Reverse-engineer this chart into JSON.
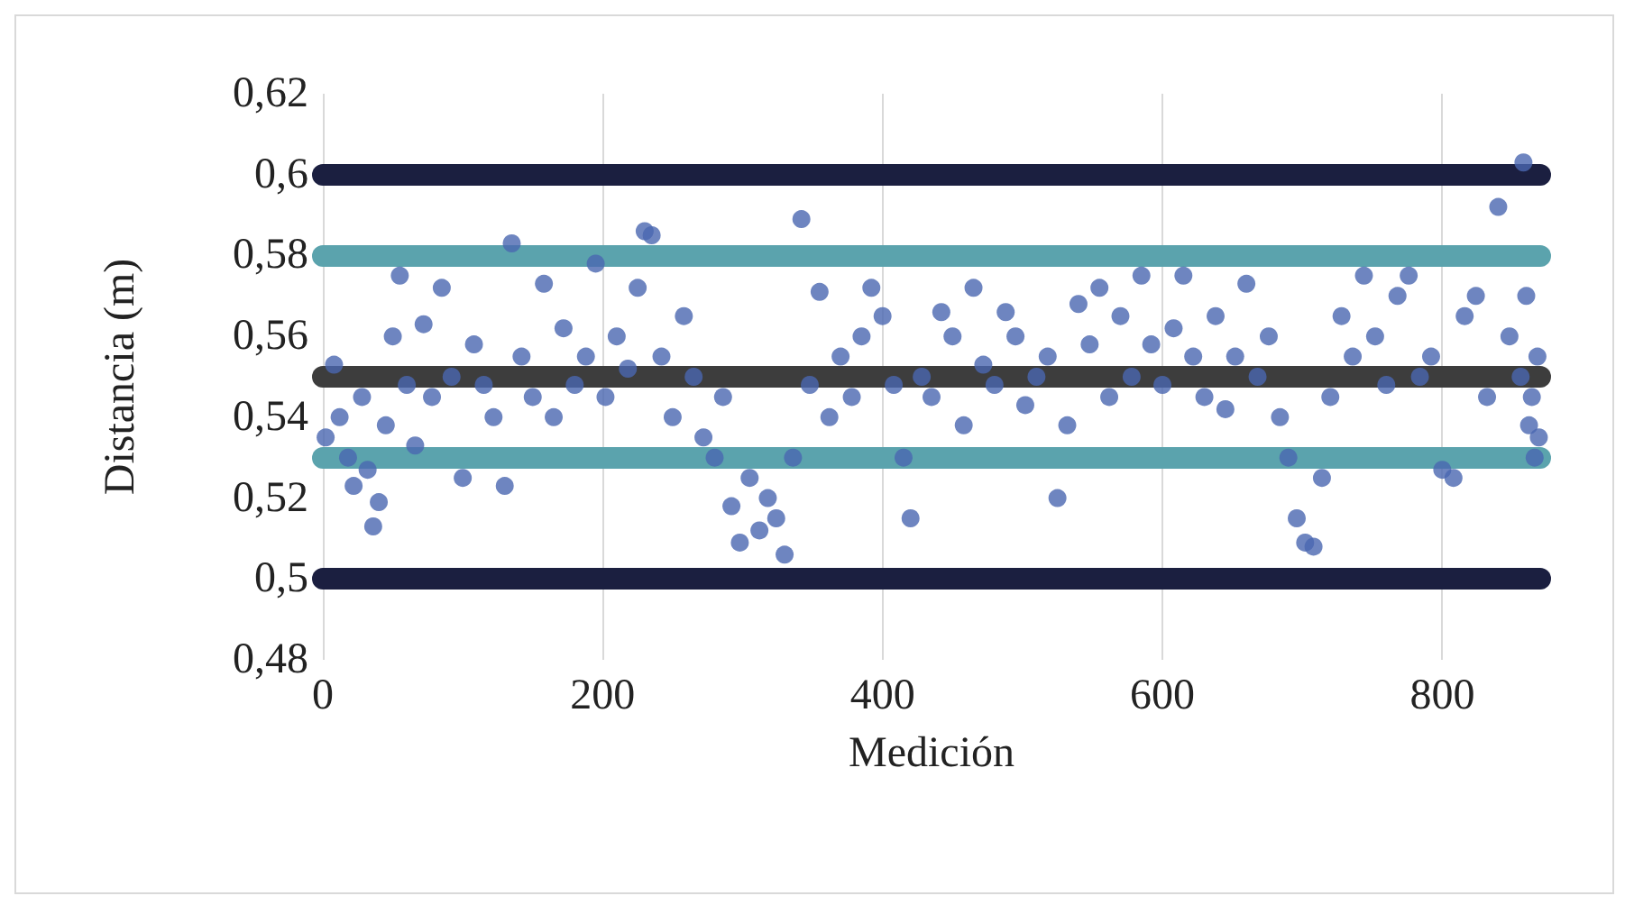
{
  "chart_data": {
    "type": "scatter",
    "xlabel": "Medición",
    "ylabel": "Distancia (m)",
    "xlim": [
      0,
      870
    ],
    "ylim": [
      0.48,
      0.62
    ],
    "xticks": [
      0,
      200,
      400,
      600,
      800
    ],
    "yticks": [
      {
        "value": 0.48,
        "label": "0,48"
      },
      {
        "value": 0.5,
        "label": "0,5"
      },
      {
        "value": 0.52,
        "label": "0,52"
      },
      {
        "value": 0.54,
        "label": "0,54"
      },
      {
        "value": 0.56,
        "label": "0,56"
      },
      {
        "value": 0.58,
        "label": "0,58"
      },
      {
        "value": 0.6,
        "label": "0,6"
      },
      {
        "value": 0.62,
        "label": "0,62"
      }
    ],
    "grid": "x",
    "marker": "circle",
    "ref_lines": [
      {
        "axis": "y",
        "value": 0.6,
        "color": "#1b1f40"
      },
      {
        "axis": "y",
        "value": 0.58,
        "color": "#5ba3ad"
      },
      {
        "axis": "y",
        "value": 0.55,
        "color": "#3d3d3d"
      },
      {
        "axis": "y",
        "value": 0.53,
        "color": "#5ba3ad"
      },
      {
        "axis": "y",
        "value": 0.5,
        "color": "#1b1f40"
      }
    ],
    "series": [
      {
        "color": "#4a67b0",
        "x": [
          2,
          8,
          12,
          18,
          22,
          28,
          32,
          36,
          40,
          45,
          50,
          55,
          60,
          66,
          72,
          78,
          85,
          92,
          100,
          108,
          115,
          122,
          130,
          135,
          142,
          150,
          158,
          165,
          172,
          180,
          188,
          195,
          202,
          210,
          218,
          225,
          230,
          235,
          242,
          250,
          258,
          265,
          272,
          280,
          286,
          292,
          298,
          305,
          312,
          318,
          324,
          330,
          336,
          342,
          348,
          355,
          362,
          370,
          378,
          385,
          392,
          400,
          408,
          415,
          420,
          428,
          435,
          442,
          450,
          458,
          465,
          472,
          480,
          488,
          495,
          502,
          510,
          518,
          525,
          532,
          540,
          548,
          555,
          562,
          570,
          578,
          585,
          592,
          600,
          608,
          615,
          622,
          630,
          638,
          645,
          652,
          660,
          668,
          676,
          684,
          690,
          696,
          702,
          708,
          714,
          720,
          728,
          736,
          744,
          752,
          760,
          768,
          776,
          784,
          792,
          800,
          808,
          816,
          824,
          832,
          840,
          848,
          856,
          862,
          868,
          858,
          860,
          864,
          866,
          869
        ],
        "values": [
          0.535,
          0.553,
          0.54,
          0.53,
          0.523,
          0.545,
          0.527,
          0.513,
          0.519,
          0.538,
          0.56,
          0.575,
          0.548,
          0.533,
          0.563,
          0.545,
          0.572,
          0.55,
          0.525,
          0.558,
          0.548,
          0.54,
          0.523,
          0.583,
          0.555,
          0.545,
          0.573,
          0.54,
          0.562,
          0.548,
          0.555,
          0.578,
          0.545,
          0.56,
          0.552,
          0.572,
          0.586,
          0.585,
          0.555,
          0.54,
          0.565,
          0.55,
          0.535,
          0.53,
          0.545,
          0.518,
          0.509,
          0.525,
          0.512,
          0.52,
          0.515,
          0.506,
          0.53,
          0.589,
          0.548,
          0.571,
          0.54,
          0.555,
          0.545,
          0.56,
          0.572,
          0.565,
          0.548,
          0.53,
          0.515,
          0.55,
          0.545,
          0.566,
          0.56,
          0.538,
          0.572,
          0.553,
          0.548,
          0.566,
          0.56,
          0.543,
          0.55,
          0.555,
          0.52,
          0.538,
          0.568,
          0.558,
          0.572,
          0.545,
          0.565,
          0.55,
          0.575,
          0.558,
          0.548,
          0.562,
          0.575,
          0.555,
          0.545,
          0.565,
          0.542,
          0.555,
          0.573,
          0.55,
          0.56,
          0.54,
          0.53,
          0.515,
          0.509,
          0.508,
          0.525,
          0.545,
          0.565,
          0.555,
          0.575,
          0.56,
          0.548,
          0.57,
          0.575,
          0.55,
          0.555,
          0.527,
          0.525,
          0.565,
          0.57,
          0.545,
          0.592,
          0.56,
          0.55,
          0.538,
          0.555,
          0.603,
          0.57,
          0.545,
          0.53,
          0.535
        ]
      }
    ]
  }
}
